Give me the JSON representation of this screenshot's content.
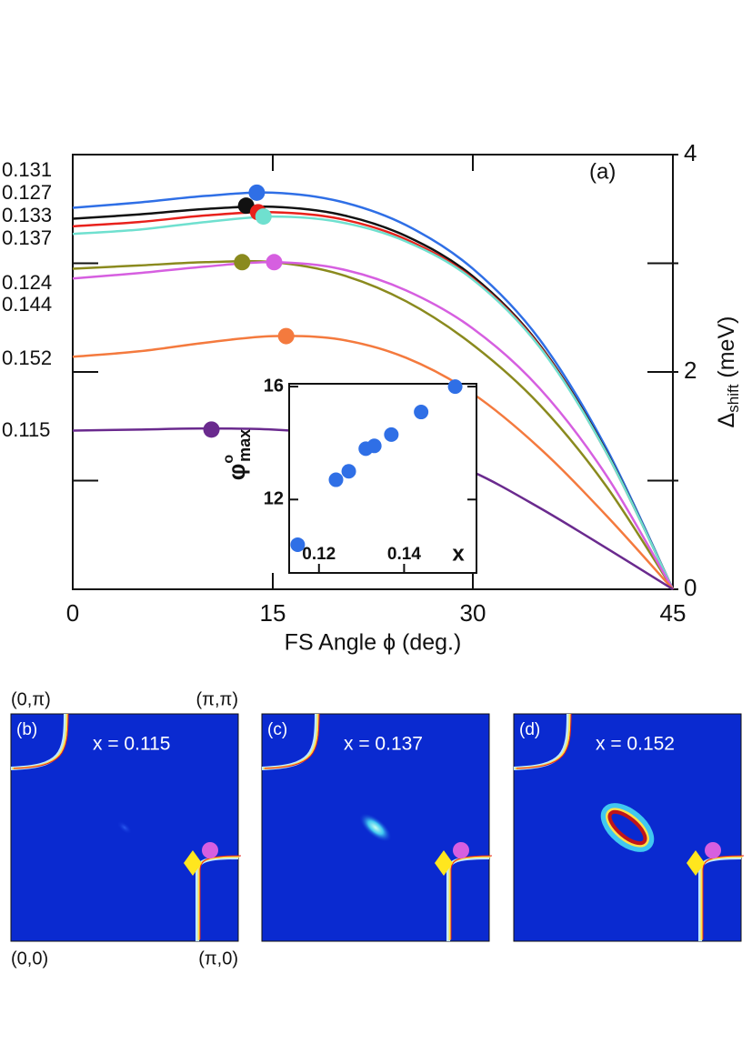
{
  "chart_data": {
    "type": "line",
    "panel_label": "(a)",
    "xlabel": "FS Angle ϕ (deg.)",
    "ylabel": {
      "symbol": "Δ",
      "sub": "shift",
      "unit": "(meV)"
    },
    "xlim": [
      0,
      45
    ],
    "xticks": [
      0,
      15,
      30,
      45
    ],
    "y2lim": [
      0,
      4
    ],
    "y2ticks": [
      0,
      2,
      4
    ],
    "y2minor": [
      1,
      3
    ],
    "x": [
      0,
      5,
      10,
      15,
      20,
      25,
      30,
      35,
      40,
      45
    ],
    "series": [
      {
        "name": "0.131",
        "color": "#2f6fe6",
        "axis": "y2",
        "values": [
          3.51,
          3.56,
          3.62,
          3.65,
          3.57,
          3.35,
          2.95,
          2.3,
          1.3,
          0
        ],
        "peak": {
          "x": 13.8,
          "y": 3.65
        }
      },
      {
        "name": "0.127",
        "color": "#111111",
        "axis": "y2",
        "values": [
          3.41,
          3.45,
          3.5,
          3.52,
          3.45,
          3.25,
          2.88,
          2.25,
          1.27,
          0
        ],
        "peak": {
          "x": 13.0,
          "y": 3.53
        }
      },
      {
        "name": "0.133",
        "color": "#e8211c",
        "axis": "y2",
        "values": [
          3.34,
          3.38,
          3.44,
          3.47,
          3.41,
          3.22,
          2.86,
          2.24,
          1.26,
          0
        ],
        "peak": {
          "x": 13.9,
          "y": 3.47
        }
      },
      {
        "name": "0.137",
        "color": "#6fe0cf",
        "axis": "y2",
        "values": [
          3.27,
          3.31,
          3.38,
          3.43,
          3.38,
          3.2,
          2.85,
          2.23,
          1.26,
          0
        ],
        "peak": {
          "x": 14.3,
          "y": 3.43
        }
      },
      {
        "name": "0.124",
        "color": "#8a8a1e",
        "axis": "y2",
        "values": [
          2.95,
          2.98,
          3.01,
          3.01,
          2.9,
          2.65,
          2.25,
          1.7,
          0.95,
          0
        ],
        "peak": {
          "x": 12.7,
          "y": 3.01
        }
      },
      {
        "name": "0.144",
        "color": "#d65fe0",
        "axis": "y2",
        "values": [
          2.86,
          2.91,
          2.97,
          3.01,
          2.95,
          2.75,
          2.4,
          1.85,
          1.05,
          0
        ],
        "peak": {
          "x": 15.1,
          "y": 3.01
        }
      },
      {
        "name": "0.152",
        "color": "#f47a3e",
        "axis": "y2",
        "values": [
          2.14,
          2.19,
          2.27,
          2.33,
          2.3,
          2.13,
          1.8,
          1.3,
          0.68,
          0
        ],
        "peak": {
          "x": 16.0,
          "y": 2.33
        }
      },
      {
        "name": "0.115",
        "color": "#6a2a8e",
        "axis": "y2",
        "values": [
          1.46,
          1.47,
          1.48,
          1.47,
          1.42,
          1.3,
          1.08,
          0.75,
          0.38,
          0
        ],
        "peak": {
          "x": 10.4,
          "y": 1.47
        }
      }
    ],
    "inset": {
      "type": "scatter",
      "xlabel": "x",
      "ylabel": {
        "symbol": "φ",
        "sup": "o",
        "sub": "max"
      },
      "xlim": [
        0.113,
        0.157
      ],
      "xticks": [
        0.12,
        0.14
      ],
      "ylim": [
        9.4,
        16.1
      ],
      "yticks": [
        12,
        16
      ],
      "color": "#2f6fe6",
      "x": [
        0.115,
        0.124,
        0.127,
        0.131,
        0.133,
        0.137,
        0.144,
        0.152
      ],
      "values": [
        10.4,
        12.7,
        13.0,
        13.8,
        13.9,
        14.3,
        15.1,
        16.0
      ]
    }
  },
  "maps": {
    "corners": {
      "top_left": "(0,π)",
      "top_right": "(π,π)",
      "bottom_left": "(0,0)",
      "bottom_right": "(π,0)"
    },
    "panels": [
      {
        "label": "(b)",
        "text": "x = 0.115"
      },
      {
        "label": "(c)",
        "text": "x = 0.137"
      },
      {
        "label": "(d)",
        "text": "x = 0.152"
      }
    ]
  }
}
